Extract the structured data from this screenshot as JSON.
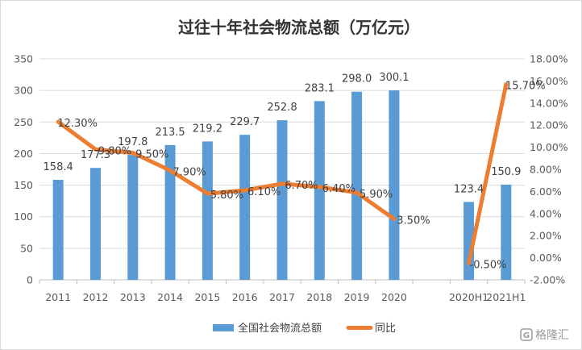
{
  "chart_data": {
    "type": "bar",
    "title": "过往十年社会物流总额（万亿元）",
    "categories": [
      "2011",
      "2012",
      "2013",
      "2014",
      "2015",
      "2016",
      "2017",
      "2018",
      "2019",
      "2020",
      "",
      "2020H1",
      "2021H1"
    ],
    "series": [
      {
        "name": "全国社会物流总额",
        "type": "bar",
        "axis": "left",
        "values": [
          158.4,
          177.3,
          197.8,
          213.5,
          219.2,
          229.7,
          252.8,
          283.1,
          298.0,
          300.1,
          null,
          123.4,
          150.9
        ],
        "labels": [
          "158.4",
          "177.3",
          "197.8",
          "213.5",
          "219.2",
          "229.7",
          "252.8",
          "283.1",
          "298.0",
          "300.1",
          null,
          "123.4",
          "150.9"
        ],
        "color": "#5b9bd5"
      },
      {
        "name": "同比",
        "type": "line",
        "axis": "right",
        "segments": [
          {
            "indices": [
              0,
              1,
              2,
              3,
              4,
              5,
              6,
              7,
              8,
              9
            ],
            "values": [
              12.3,
              9.8,
              9.5,
              7.9,
              5.8,
              6.1,
              6.7,
              6.4,
              5.9,
              3.5
            ]
          },
          {
            "indices": [
              11,
              12
            ],
            "values": [
              -0.5,
              15.7
            ]
          }
        ],
        "labels": [
          "12.30%",
          "9.80%",
          "9.50%",
          "7.90%",
          "5.80%",
          "6.10%",
          "6.70%",
          "6.40%",
          "5.90%",
          "3.50%",
          null,
          "-0.50%",
          "15.70%"
        ],
        "color": "#ed7d31"
      }
    ],
    "y_left": {
      "min": 0,
      "max": 350,
      "ticks": [
        "0",
        "50",
        "100",
        "150",
        "200",
        "250",
        "300",
        "350"
      ]
    },
    "y_right": {
      "min": -2,
      "max": 18,
      "ticks": [
        "-2.00%",
        "0.00%",
        "2.00%",
        "4.00%",
        "6.00%",
        "8.00%",
        "10.00%",
        "12.00%",
        "14.00%",
        "16.00%",
        "18.00%"
      ]
    },
    "grid": true,
    "legend_position": "bottom"
  },
  "watermark": {
    "text": "格隆汇"
  }
}
